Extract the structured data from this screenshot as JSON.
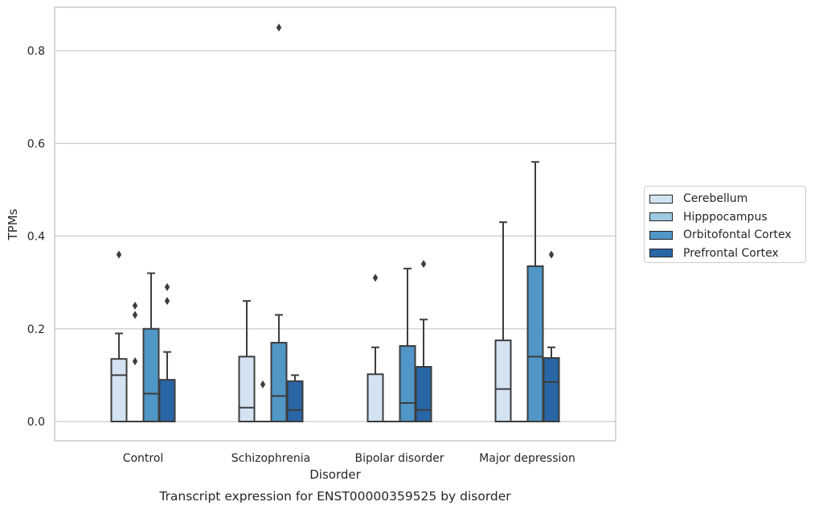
{
  "chart_data": {
    "type": "box",
    "caption": "Transcript expression for ENST00000359525 by disorder",
    "xlabel": "Disorder",
    "ylabel": "TPMs",
    "ylim": [
      -0.04,
      0.895
    ],
    "yticks": [
      0.0,
      0.2,
      0.4,
      0.6,
      0.8
    ],
    "ytick_labels": [
      "0.0",
      "0.2",
      "0.4",
      "0.6",
      "0.8"
    ],
    "grid": "horizontal",
    "legend_position": "right",
    "categories": [
      "Control",
      "Schizophrenia",
      "Bipolar disorder",
      "Major depression"
    ],
    "series": [
      {
        "name": "Cerebellum",
        "color": "#d3e3f2",
        "boxes": [
          {
            "q1": 0.0,
            "median": 0.1,
            "q3": 0.135,
            "whisker_low": 0.0,
            "whisker_high": 0.19,
            "outliers": [
              0.36
            ]
          },
          {
            "q1": 0.0,
            "median": 0.03,
            "q3": 0.14,
            "whisker_low": 0.0,
            "whisker_high": 0.26,
            "outliers": []
          },
          {
            "q1": 0.0,
            "median": 0.0,
            "q3": 0.102,
            "whisker_low": 0.0,
            "whisker_high": 0.16,
            "outliers": [
              0.31
            ]
          },
          {
            "q1": 0.0,
            "median": 0.07,
            "q3": 0.175,
            "whisker_low": 0.0,
            "whisker_high": 0.43,
            "outliers": []
          }
        ]
      },
      {
        "name": "Hipppocampus",
        "color": "#9ec9e2",
        "boxes": [
          {
            "q1": 0.0,
            "median": 0.0,
            "q3": 0.0,
            "whisker_low": 0.0,
            "whisker_high": 0.0,
            "outliers": [
              0.13,
              0.23,
              0.25
            ]
          },
          {
            "q1": 0.0,
            "median": 0.0,
            "q3": 0.0,
            "whisker_low": 0.0,
            "whisker_high": 0.0,
            "outliers": [
              0.08
            ]
          },
          {
            "q1": 0.0,
            "median": 0.0,
            "q3": 0.0,
            "whisker_low": 0.0,
            "whisker_high": 0.0,
            "outliers": []
          },
          {
            "q1": 0.0,
            "median": 0.0,
            "q3": 0.0,
            "whisker_low": 0.0,
            "whisker_high": 0.0,
            "outliers": []
          }
        ]
      },
      {
        "name": "Orbitofontal Cortex",
        "color": "#5096c6",
        "boxes": [
          {
            "q1": 0.0,
            "median": 0.06,
            "q3": 0.2,
            "whisker_low": 0.0,
            "whisker_high": 0.32,
            "outliers": []
          },
          {
            "q1": 0.0,
            "median": 0.055,
            "q3": 0.17,
            "whisker_low": 0.0,
            "whisker_high": 0.23,
            "outliers": [
              0.85
            ]
          },
          {
            "q1": 0.0,
            "median": 0.04,
            "q3": 0.163,
            "whisker_low": 0.0,
            "whisker_high": 0.33,
            "outliers": []
          },
          {
            "q1": 0.0,
            "median": 0.14,
            "q3": 0.335,
            "whisker_low": 0.0,
            "whisker_high": 0.56,
            "outliers": []
          }
        ]
      },
      {
        "name": "Prefrontal Cortex",
        "color": "#2866a6",
        "boxes": [
          {
            "q1": 0.0,
            "median": 0.0,
            "q3": 0.09,
            "whisker_low": 0.0,
            "whisker_high": 0.15,
            "outliers": [
              0.26,
              0.29
            ]
          },
          {
            "q1": 0.0,
            "median": 0.025,
            "q3": 0.087,
            "whisker_low": 0.0,
            "whisker_high": 0.1,
            "outliers": []
          },
          {
            "q1": 0.0,
            "median": 0.025,
            "q3": 0.118,
            "whisker_low": 0.0,
            "whisker_high": 0.22,
            "outliers": [
              0.34
            ]
          },
          {
            "q1": 0.0,
            "median": 0.085,
            "q3": 0.137,
            "whisker_low": 0.0,
            "whisker_high": 0.16,
            "outliers": [
              0.36
            ]
          }
        ]
      }
    ]
  }
}
